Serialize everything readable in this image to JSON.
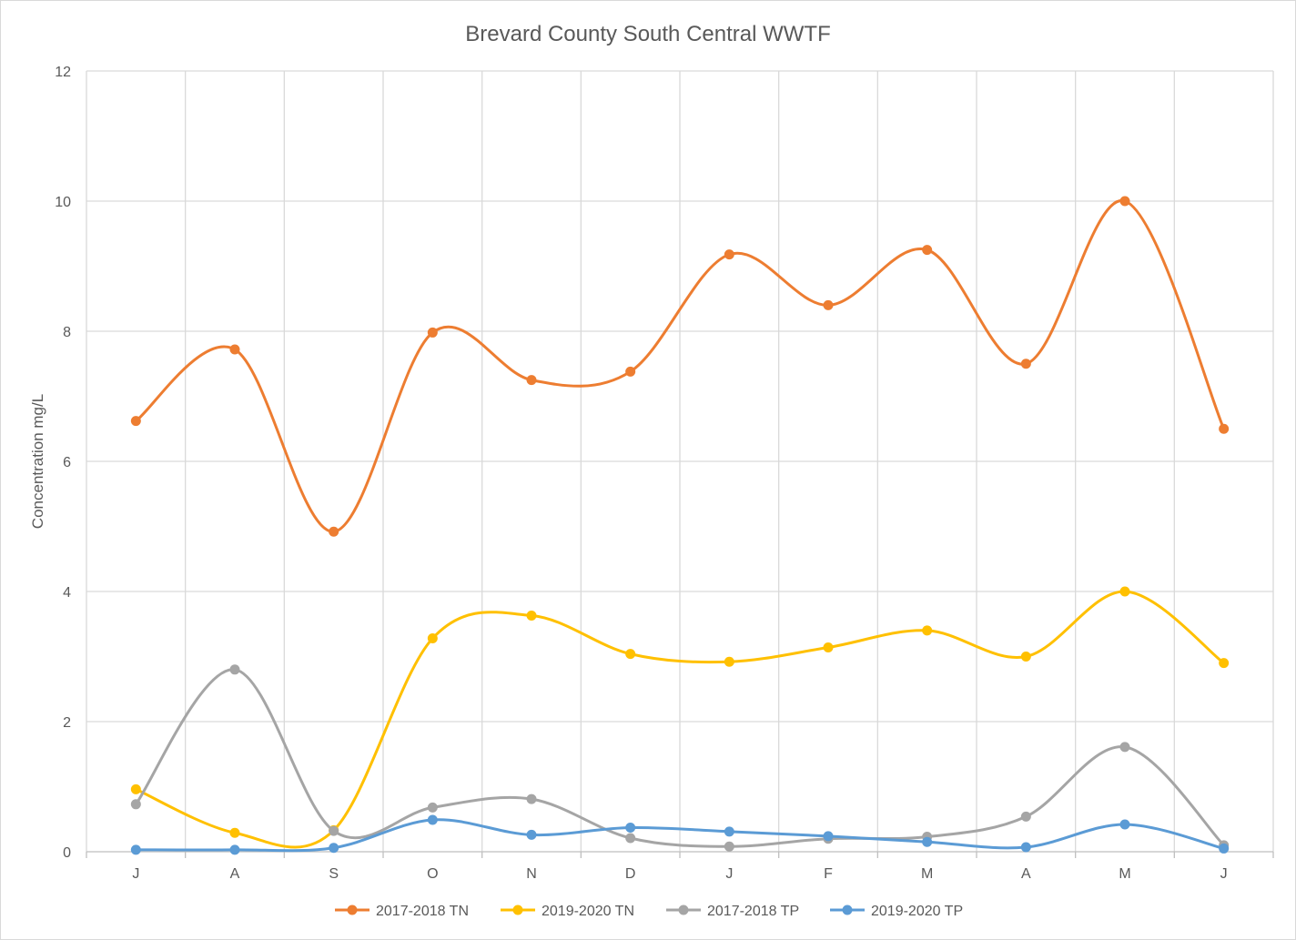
{
  "chart_data": {
    "type": "line",
    "title": "Brevard County South Central WWTF",
    "xlabel": "",
    "ylabel": "Concentration mg/L",
    "categories": [
      "J",
      "A",
      "S",
      "O",
      "N",
      "D",
      "J",
      "F",
      "M",
      "A",
      "M",
      "J"
    ],
    "yticks": [
      "0",
      "2",
      "4",
      "6",
      "8",
      "10",
      "12"
    ],
    "ylim": [
      0,
      12
    ],
    "grid": true,
    "smooth": true,
    "legend_position": "bottom",
    "series": [
      {
        "name": "2017-2018 TN",
        "color": "#ED7D31",
        "values": [
          6.62,
          7.72,
          4.92,
          7.98,
          7.25,
          7.38,
          9.18,
          8.4,
          9.25,
          7.5,
          10.0,
          6.5
        ]
      },
      {
        "name": "2019-2020 TN",
        "color": "#FFC000",
        "values": [
          0.96,
          0.29,
          0.33,
          3.28,
          3.63,
          3.04,
          2.92,
          3.14,
          3.4,
          3.0,
          4.0,
          2.9
        ]
      },
      {
        "name": "2017-2018 TP",
        "color": "#A5A5A5",
        "values": [
          0.73,
          2.8,
          0.32,
          0.68,
          0.81,
          0.21,
          0.08,
          0.2,
          0.23,
          0.54,
          1.61,
          0.1
        ]
      },
      {
        "name": "2019-2020 TP",
        "color": "#5B9BD5",
        "values": [
          0.03,
          0.03,
          0.06,
          0.49,
          0.26,
          0.37,
          0.31,
          0.24,
          0.15,
          0.07,
          0.42,
          0.05
        ]
      }
    ]
  }
}
